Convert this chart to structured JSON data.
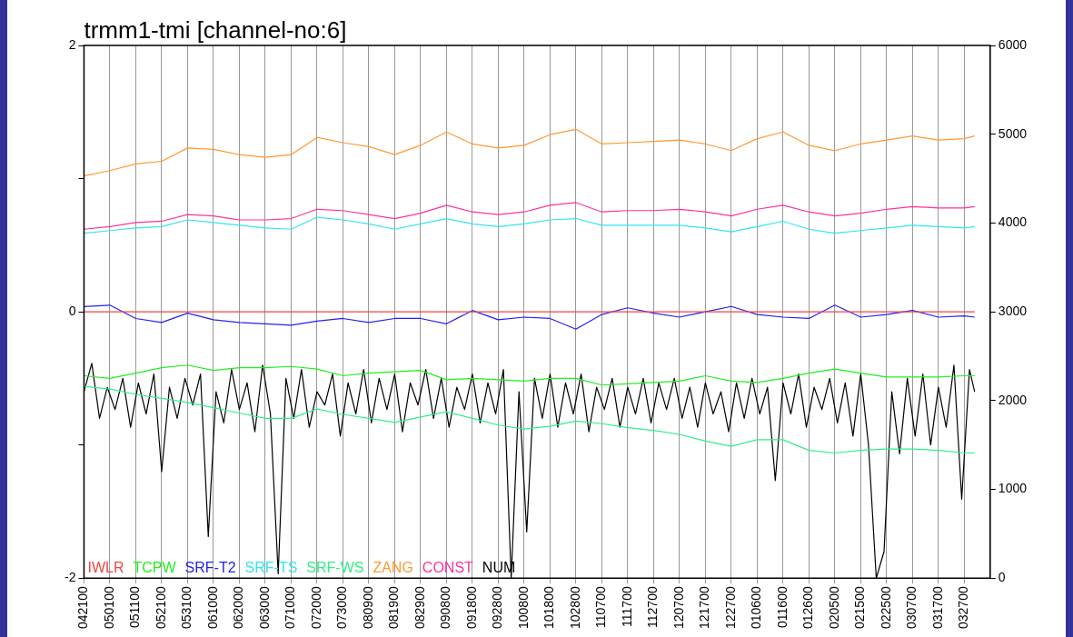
{
  "chart_data": {
    "type": "line",
    "title": "trmm1-tmi [channel-no:6]",
    "x": [
      "2000-04-21",
      "2000-05-01",
      "2000-05-11",
      "2000-05-21",
      "2000-05-31",
      "2000-06-10",
      "2000-06-20",
      "2000-06-30",
      "2000-07-10",
      "2000-07-20",
      "2000-07-30",
      "2000-08-09",
      "2000-08-19",
      "2000-08-29",
      "2000-09-08",
      "2000-09-18",
      "2000-09-28",
      "2000-10-08",
      "2000-10-18",
      "2000-10-28",
      "2000-11-07",
      "2000-11-17",
      "2000-11-27",
      "2000-12-07",
      "2000-12-17",
      "2000-12-27",
      "2001-01-06",
      "2001-01-16",
      "2001-01-26",
      "2001-02-05",
      "2001-02-15",
      "2001-02-25",
      "2001-03-07",
      "2001-03-17",
      "2001-03-27",
      "2001-03-31"
    ],
    "xlim": [
      "2000-04-21",
      "2001-04-06"
    ],
    "xticks": [
      {
        "value": "2000-04-21",
        "label": "042100"
      },
      {
        "value": "2000-05-01",
        "label": "050100"
      },
      {
        "value": "2000-05-11",
        "label": "051100"
      },
      {
        "value": "2000-05-21",
        "label": "052100"
      },
      {
        "value": "2000-05-31",
        "label": "053100"
      },
      {
        "value": "2000-06-10",
        "label": "061000"
      },
      {
        "value": "2000-06-20",
        "label": "062000"
      },
      {
        "value": "2000-06-30",
        "label": "063000"
      },
      {
        "value": "2000-07-10",
        "label": "071000"
      },
      {
        "value": "2000-07-20",
        "label": "072000"
      },
      {
        "value": "2000-07-30",
        "label": "073000"
      },
      {
        "value": "2000-08-09",
        "label": "080900"
      },
      {
        "value": "2000-08-19",
        "label": "081900"
      },
      {
        "value": "2000-08-29",
        "label": "082900"
      },
      {
        "value": "2000-09-08",
        "label": "090800"
      },
      {
        "value": "2000-09-18",
        "label": "091800"
      },
      {
        "value": "2000-09-28",
        "label": "092800"
      },
      {
        "value": "2000-10-08",
        "label": "100800"
      },
      {
        "value": "2000-10-18",
        "label": "101800"
      },
      {
        "value": "2000-10-28",
        "label": "102800"
      },
      {
        "value": "2000-11-07",
        "label": "110700"
      },
      {
        "value": "2000-11-17",
        "label": "111700"
      },
      {
        "value": "2000-11-27",
        "label": "112700"
      },
      {
        "value": "2000-12-07",
        "label": "120700"
      },
      {
        "value": "2000-12-17",
        "label": "121700"
      },
      {
        "value": "2000-12-27",
        "label": "122700"
      },
      {
        "value": "2001-01-06",
        "label": "010600"
      },
      {
        "value": "2001-01-16",
        "label": "011600"
      },
      {
        "value": "2001-01-26",
        "label": "012600"
      },
      {
        "value": "2001-02-05",
        "label": "020500"
      },
      {
        "value": "2001-02-15",
        "label": "021500"
      },
      {
        "value": "2001-02-25",
        "label": "022500"
      },
      {
        "value": "2001-03-07",
        "label": "030700"
      },
      {
        "value": "2001-03-17",
        "label": "031700"
      },
      {
        "value": "2001-03-27",
        "label": "032700"
      }
    ],
    "ylim": [
      -2,
      2
    ],
    "yticks": [
      -2,
      {
        "value": -1,
        "label": null
      },
      0,
      {
        "value": 1,
        "label": null
      },
      2
    ],
    "y2lim": [
      0,
      6000
    ],
    "y2ticks": [
      0,
      1000,
      2000,
      3000,
      4000,
      5000,
      6000
    ],
    "grid": "x",
    "legend": "bottom left",
    "marker": "none",
    "line_style": "solid",
    "series": [
      {
        "name": "IWLR",
        "color": "#ee4444",
        "values": [
          0,
          0,
          0,
          0,
          0,
          0,
          0,
          0,
          0,
          0,
          0,
          0,
          0,
          0,
          0,
          0,
          0,
          0,
          0,
          0,
          0,
          0,
          0,
          0,
          0,
          0,
          0,
          0,
          0,
          0,
          0,
          0,
          0,
          0,
          0,
          0
        ]
      },
      {
        "name": "TCPW",
        "color": "#22ee22",
        "values": [
          -0.48,
          -0.5,
          -0.46,
          -0.42,
          -0.4,
          -0.44,
          -0.42,
          -0.42,
          -0.41,
          -0.43,
          -0.48,
          -0.46,
          -0.45,
          -0.44,
          -0.51,
          -0.5,
          -0.51,
          -0.52,
          -0.5,
          -0.5,
          -0.55,
          -0.54,
          -0.53,
          -0.52,
          -0.48,
          -0.52,
          -0.53,
          -0.5,
          -0.46,
          -0.43,
          -0.46,
          -0.49,
          -0.49,
          -0.49,
          -0.48,
          -0.48
        ]
      },
      {
        "name": "SRF-T2",
        "color": "#2222ee",
        "values": [
          0.04,
          0.05,
          -0.05,
          -0.08,
          -0.01,
          -0.06,
          -0.08,
          -0.09,
          -0.1,
          -0.07,
          -0.05,
          -0.08,
          -0.05,
          -0.05,
          -0.09,
          0.01,
          -0.06,
          -0.04,
          -0.05,
          -0.13,
          -0.02,
          0.03,
          -0.01,
          -0.04,
          0.0,
          0.04,
          -0.02,
          -0.04,
          -0.05,
          0.05,
          -0.04,
          -0.02,
          0.01,
          -0.04,
          -0.03,
          -0.04
        ]
      },
      {
        "name": "SRF-TS",
        "color": "#33e5ee",
        "values": [
          0.59,
          0.61,
          0.63,
          0.64,
          0.69,
          0.67,
          0.65,
          0.63,
          0.62,
          0.71,
          0.69,
          0.66,
          0.62,
          0.66,
          0.7,
          0.66,
          0.64,
          0.66,
          0.69,
          0.7,
          0.65,
          0.65,
          0.65,
          0.65,
          0.63,
          0.6,
          0.64,
          0.68,
          0.62,
          0.59,
          0.61,
          0.63,
          0.65,
          0.64,
          0.63,
          0.64
        ]
      },
      {
        "name": "SRF-WS",
        "color": "#33ee88",
        "values": [
          -0.56,
          -0.58,
          -0.62,
          -0.65,
          -0.68,
          -0.72,
          -0.76,
          -0.8,
          -0.8,
          -0.73,
          -0.77,
          -0.8,
          -0.83,
          -0.79,
          -0.75,
          -0.8,
          -0.85,
          -0.88,
          -0.86,
          -0.82,
          -0.84,
          -0.87,
          -0.89,
          -0.92,
          -0.97,
          -1.01,
          -0.96,
          -0.96,
          -1.04,
          -1.06,
          -1.04,
          -1.03,
          -1.03,
          -1.04,
          -1.06,
          -1.06
        ]
      },
      {
        "name": "ZANG",
        "color": "#ff9933",
        "values": [
          1.02,
          1.06,
          1.11,
          1.13,
          1.23,
          1.22,
          1.18,
          1.16,
          1.18,
          1.31,
          1.27,
          1.24,
          1.18,
          1.25,
          1.35,
          1.26,
          1.23,
          1.25,
          1.33,
          1.37,
          1.26,
          1.27,
          1.28,
          1.29,
          1.26,
          1.21,
          1.3,
          1.35,
          1.25,
          1.21,
          1.26,
          1.29,
          1.32,
          1.29,
          1.3,
          1.32
        ]
      },
      {
        "name": "CONST",
        "color": "#ff3399",
        "values": [
          0.62,
          0.64,
          0.67,
          0.68,
          0.73,
          0.72,
          0.69,
          0.69,
          0.7,
          0.77,
          0.76,
          0.73,
          0.7,
          0.74,
          0.8,
          0.75,
          0.73,
          0.75,
          0.8,
          0.82,
          0.75,
          0.76,
          0.76,
          0.77,
          0.75,
          0.72,
          0.77,
          0.8,
          0.75,
          0.72,
          0.74,
          0.77,
          0.79,
          0.78,
          0.78,
          0.79
        ]
      },
      {
        "name": "NUM",
        "color": "#000000",
        "axis": "y2",
        "x": [
          "2000-04-21",
          "2000-04-24",
          "2000-04-27",
          "2000-04-30",
          "2000-05-03",
          "2000-05-06",
          "2000-05-09",
          "2000-05-12",
          "2000-05-15",
          "2000-05-18",
          "2000-05-21",
          "2000-05-24",
          "2000-05-27",
          "2000-05-30",
          "2000-06-02",
          "2000-06-05",
          "2000-06-08",
          "2000-06-11",
          "2000-06-14",
          "2000-06-17",
          "2000-06-20",
          "2000-06-23",
          "2000-06-26",
          "2000-06-29",
          "2000-07-02",
          "2000-07-05",
          "2000-07-08",
          "2000-07-11",
          "2000-07-14",
          "2000-07-17",
          "2000-07-20",
          "2000-07-23",
          "2000-07-26",
          "2000-07-29",
          "2000-08-01",
          "2000-08-04",
          "2000-08-07",
          "2000-08-10",
          "2000-08-13",
          "2000-08-16",
          "2000-08-19",
          "2000-08-22",
          "2000-08-25",
          "2000-08-28",
          "2000-08-31",
          "2000-09-03",
          "2000-09-06",
          "2000-09-09",
          "2000-09-12",
          "2000-09-15",
          "2000-09-18",
          "2000-09-21",
          "2000-09-24",
          "2000-09-27",
          "2000-09-30",
          "2000-10-03",
          "2000-10-06",
          "2000-10-09",
          "2000-10-12",
          "2000-10-15",
          "2000-10-18",
          "2000-10-21",
          "2000-10-24",
          "2000-10-27",
          "2000-10-30",
          "2000-11-02",
          "2000-11-05",
          "2000-11-08",
          "2000-11-11",
          "2000-11-14",
          "2000-11-17",
          "2000-11-20",
          "2000-11-23",
          "2000-11-26",
          "2000-11-29",
          "2000-12-02",
          "2000-12-05",
          "2000-12-08",
          "2000-12-11",
          "2000-12-14",
          "2000-12-17",
          "2000-12-20",
          "2000-12-23",
          "2000-12-26",
          "2000-12-29",
          "2001-01-01",
          "2001-01-04",
          "2001-01-07",
          "2001-01-10",
          "2001-01-13",
          "2001-01-16",
          "2001-01-19",
          "2001-01-22",
          "2001-01-25",
          "2001-01-28",
          "2001-01-31",
          "2001-02-03",
          "2001-02-06",
          "2001-02-09",
          "2001-02-12",
          "2001-02-15",
          "2001-02-18",
          "2001-02-21",
          "2001-02-24",
          "2001-02-27",
          "2001-03-02",
          "2001-03-05",
          "2001-03-08",
          "2001-03-11",
          "2001-03-14",
          "2001-03-17",
          "2001-03-20",
          "2001-03-23",
          "2001-03-26",
          "2001-03-29",
          "2001-03-31"
        ],
        "values": [
          2100,
          2420,
          1800,
          2150,
          1900,
          2250,
          1700,
          2200,
          1850,
          2300,
          1200,
          2150,
          1800,
          2250,
          1950,
          2300,
          470,
          2100,
          1750,
          2350,
          1900,
          2200,
          1650,
          2400,
          1850,
          50,
          2250,
          1800,
          2350,
          1700,
          2100,
          1950,
          2300,
          1600,
          2200,
          1850,
          2350,
          1750,
          2250,
          1900,
          2300,
          1650,
          2200,
          1950,
          2350,
          1800,
          2250,
          1700,
          2150,
          1900,
          2300,
          1750,
          2200,
          1850,
          2350,
          0,
          2100,
          520,
          2250,
          1800,
          2300,
          1700,
          2200,
          1850,
          2300,
          1650,
          2150,
          1900,
          2250,
          1700,
          2150,
          1850,
          2250,
          1750,
          2200,
          1900,
          2250,
          1800,
          2150,
          1700,
          2200,
          1850,
          2100,
          1650,
          2200,
          1800,
          2250,
          1850,
          2150,
          1100,
          2200,
          1850,
          2300,
          1700,
          2150,
          1900,
          2250,
          1750,
          2200,
          1600,
          2300,
          1500,
          0,
          300,
          2100,
          1400,
          2250,
          1600,
          2300,
          1500,
          2150,
          1700,
          2400,
          890,
          2350,
          2100
        ]
      }
    ]
  }
}
